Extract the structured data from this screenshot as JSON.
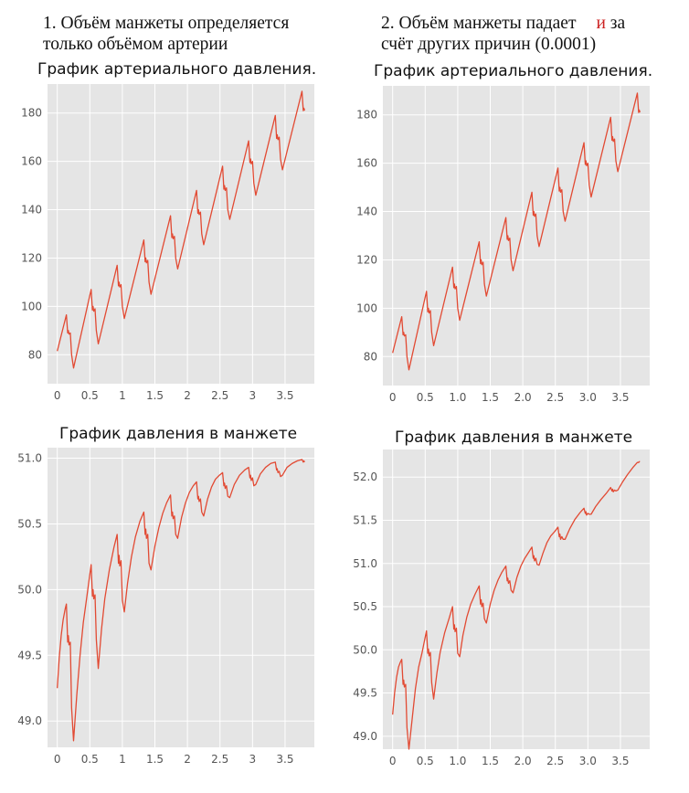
{
  "captions": {
    "left": {
      "line1": "1. Объём манжеты определяется",
      "line2": "только объёмом артерии"
    },
    "right": {
      "line1a": "2. Объём манжеты  падает",
      "line1b": "и",
      "line1c": " за",
      "line2": "счёт других причин (0.0001)"
    }
  },
  "chart_data": [
    {
      "id": "left-arterial",
      "type": "line",
      "title": "График артериального давления.",
      "xlim": [
        -0.15,
        3.95
      ],
      "ylim": [
        68,
        192
      ],
      "xticks": [
        0,
        0.5,
        1,
        1.5,
        2,
        2.5,
        3,
        3.5
      ],
      "xtick_labels": [
        "0",
        "0.5",
        "1",
        "1.5",
        "2",
        "2.5",
        "3",
        "3.5"
      ],
      "yticks": [
        80,
        100,
        120,
        140,
        160,
        180
      ],
      "ytick_labels": [
        "80",
        "100",
        "120",
        "140",
        "160",
        "180"
      ],
      "grid": true,
      "series": [
        {
          "color": "#e24a33",
          "x": [
            0,
            0.14,
            0.16,
            0.17,
            0.18,
            0.2,
            0.22,
            0.25,
            0.52,
            0.54,
            0.55,
            0.56,
            0.58,
            0.6,
            0.63,
            0.92,
            0.94,
            0.95,
            0.96,
            0.98,
            1.0,
            1.03,
            1.33,
            1.35,
            1.36,
            1.37,
            1.39,
            1.41,
            1.44,
            1.74,
            1.76,
            1.77,
            1.78,
            1.8,
            1.82,
            1.85,
            2.14,
            2.16,
            2.17,
            2.18,
            2.2,
            2.22,
            2.25,
            2.54,
            2.56,
            2.57,
            2.58,
            2.6,
            2.62,
            2.65,
            2.94,
            2.96,
            2.97,
            2.98,
            3.0,
            3.02,
            3.05,
            3.35,
            3.37,
            3.38,
            3.39,
            3.41,
            3.43,
            3.46,
            3.76,
            3.78,
            3.79,
            3.8
          ],
          "y": [
            81.5,
            96.5,
            89,
            90,
            88.5,
            89,
            80,
            74.5,
            107,
            98.5,
            100,
            98,
            99,
            90,
            84.5,
            117,
            108.5,
            110,
            108,
            109,
            100,
            95,
            127.5,
            118.5,
            120,
            118,
            119,
            110,
            105,
            137.5,
            128.5,
            130,
            128,
            129,
            120,
            115.5,
            148,
            138.5,
            140,
            138,
            139,
            130,
            125.5,
            158,
            148.5,
            150,
            148,
            149,
            140,
            136,
            168.5,
            159.5,
            161,
            159,
            160,
            151,
            146,
            179,
            169.5,
            171,
            169,
            170,
            161,
            156.5,
            189,
            181,
            182,
            181
          ]
        }
      ]
    },
    {
      "id": "right-arterial",
      "type": "line",
      "title": "График артериального давления.",
      "xlim": [
        -0.15,
        3.95
      ],
      "ylim": [
        68,
        192
      ],
      "xticks": [
        0,
        0.5,
        1,
        1.5,
        2,
        2.5,
        3,
        3.5
      ],
      "xtick_labels": [
        "0",
        "0.5",
        "1.0",
        "1.5",
        "2.0",
        "2.5",
        "3.0",
        "3.5"
      ],
      "yticks": [
        80,
        100,
        120,
        140,
        160,
        180
      ],
      "ytick_labels": [
        "80",
        "100",
        "120",
        "140",
        "160",
        "180"
      ],
      "grid": true,
      "series": [
        {
          "color": "#e24a33",
          "x": [
            0,
            0.14,
            0.16,
            0.17,
            0.18,
            0.2,
            0.22,
            0.25,
            0.52,
            0.54,
            0.55,
            0.56,
            0.58,
            0.6,
            0.63,
            0.92,
            0.94,
            0.95,
            0.96,
            0.98,
            1.0,
            1.03,
            1.33,
            1.35,
            1.36,
            1.37,
            1.39,
            1.41,
            1.44,
            1.74,
            1.76,
            1.77,
            1.78,
            1.8,
            1.82,
            1.85,
            2.14,
            2.16,
            2.17,
            2.18,
            2.2,
            2.22,
            2.25,
            2.54,
            2.56,
            2.57,
            2.58,
            2.6,
            2.62,
            2.65,
            2.94,
            2.96,
            2.97,
            2.98,
            3.0,
            3.02,
            3.05,
            3.35,
            3.37,
            3.38,
            3.39,
            3.41,
            3.43,
            3.46,
            3.76,
            3.78,
            3.79,
            3.8
          ],
          "y": [
            81.5,
            96.5,
            89,
            90,
            88.5,
            89,
            80,
            74.5,
            107,
            98.5,
            100,
            98,
            99,
            90,
            84.5,
            117,
            108.5,
            110,
            108,
            109,
            100,
            95,
            127.5,
            118.5,
            120,
            118,
            119,
            110,
            105,
            137.5,
            128.5,
            130,
            128,
            129,
            120,
            115.5,
            148,
            138.5,
            140,
            138,
            139,
            130,
            125.5,
            158,
            148.5,
            150,
            148,
            149,
            140,
            136,
            168.5,
            159.5,
            161,
            159,
            160,
            151,
            146,
            179,
            169.5,
            171,
            169,
            170,
            161,
            156.5,
            189,
            181,
            182,
            181
          ]
        }
      ]
    },
    {
      "id": "left-cuff",
      "type": "line",
      "title": "График давления в манжете",
      "xlim": [
        -0.15,
        3.95
      ],
      "ylim": [
        48.8,
        51.08
      ],
      "xticks": [
        0,
        0.5,
        1,
        1.5,
        2,
        2.5,
        3,
        3.5
      ],
      "xtick_labels": [
        "0",
        "0.5",
        "1",
        "1.5",
        "2",
        "2.5",
        "3",
        "3.5"
      ],
      "yticks": [
        49.0,
        49.5,
        50.0,
        50.5,
        51.0
      ],
      "ytick_labels": [
        "49.0",
        "49.5",
        "50.0",
        "50.5",
        "51.0"
      ],
      "grid": true,
      "series": [
        {
          "color": "#e24a33",
          "x": [
            0,
            0.03,
            0.06,
            0.09,
            0.12,
            0.14,
            0.16,
            0.17,
            0.18,
            0.2,
            0.22,
            0.25,
            0.3,
            0.35,
            0.4,
            0.45,
            0.52,
            0.54,
            0.55,
            0.56,
            0.58,
            0.6,
            0.63,
            0.68,
            0.73,
            0.8,
            0.87,
            0.92,
            0.94,
            0.95,
            0.96,
            0.98,
            1.0,
            1.03,
            1.08,
            1.14,
            1.2,
            1.27,
            1.33,
            1.35,
            1.36,
            1.37,
            1.39,
            1.41,
            1.44,
            1.5,
            1.56,
            1.62,
            1.68,
            1.74,
            1.76,
            1.77,
            1.78,
            1.8,
            1.82,
            1.85,
            1.91,
            1.97,
            2.03,
            2.09,
            2.14,
            2.16,
            2.17,
            2.18,
            2.2,
            2.22,
            2.25,
            2.31,
            2.37,
            2.43,
            2.49,
            2.54,
            2.56,
            2.57,
            2.58,
            2.6,
            2.62,
            2.65,
            2.72,
            2.8,
            2.88,
            2.94,
            2.96,
            2.97,
            2.98,
            3.0,
            3.02,
            3.05,
            3.12,
            3.2,
            3.28,
            3.35,
            3.37,
            3.38,
            3.39,
            3.41,
            3.43,
            3.46,
            3.53,
            3.61,
            3.69,
            3.76,
            3.78,
            3.79,
            3.8
          ],
          "y": [
            49.25,
            49.48,
            49.65,
            49.77,
            49.85,
            49.89,
            49.6,
            49.65,
            49.58,
            49.6,
            49.1,
            48.85,
            49.2,
            49.5,
            49.75,
            49.93,
            50.19,
            49.95,
            50.0,
            49.93,
            49.96,
            49.62,
            49.4,
            49.7,
            49.93,
            50.15,
            50.32,
            50.42,
            50.2,
            50.26,
            50.18,
            50.22,
            49.92,
            49.83,
            50.05,
            50.25,
            50.4,
            50.52,
            50.59,
            50.42,
            50.46,
            50.39,
            50.42,
            50.2,
            50.15,
            50.33,
            50.47,
            50.58,
            50.66,
            50.72,
            50.56,
            50.59,
            50.54,
            50.56,
            50.42,
            50.39,
            50.55,
            50.66,
            50.74,
            50.79,
            50.82,
            50.69,
            50.71,
            50.67,
            50.69,
            50.59,
            50.56,
            50.69,
            50.78,
            50.84,
            50.87,
            50.89,
            50.79,
            50.81,
            50.77,
            50.79,
            50.71,
            50.7,
            50.8,
            50.87,
            50.91,
            50.93,
            50.85,
            50.87,
            50.83,
            50.85,
            50.79,
            50.8,
            50.88,
            50.93,
            50.96,
            50.97,
            50.91,
            50.92,
            50.89,
            50.9,
            50.86,
            50.87,
            50.93,
            50.96,
            50.98,
            50.99,
            50.97,
            50.98,
            50.97
          ]
        }
      ]
    },
    {
      "id": "right-cuff",
      "type": "line",
      "title": "График давления в манжете",
      "xlim": [
        -0.15,
        3.95
      ],
      "ylim": [
        48.85,
        52.32
      ],
      "xticks": [
        0,
        0.5,
        1,
        1.5,
        2,
        2.5,
        3,
        3.5
      ],
      "xtick_labels": [
        "0",
        "0.5",
        "1.0",
        "1.5",
        "2.0",
        "2.5",
        "3.0",
        "3.5"
      ],
      "yticks": [
        49.0,
        49.5,
        50.0,
        50.5,
        51.0,
        51.5,
        52.0
      ],
      "ytick_labels": [
        "49.0",
        "49.5",
        "50.0",
        "50.5",
        "51.0",
        "51.5",
        "52.0"
      ],
      "grid": true,
      "series": [
        {
          "color": "#e24a33",
          "x": [
            0,
            0.03,
            0.06,
            0.09,
            0.12,
            0.14,
            0.16,
            0.17,
            0.18,
            0.2,
            0.22,
            0.25,
            0.3,
            0.35,
            0.4,
            0.45,
            0.52,
            0.54,
            0.55,
            0.56,
            0.58,
            0.6,
            0.63,
            0.68,
            0.73,
            0.8,
            0.87,
            0.92,
            0.94,
            0.95,
            0.96,
            0.98,
            1.0,
            1.03,
            1.08,
            1.14,
            1.2,
            1.27,
            1.33,
            1.35,
            1.36,
            1.37,
            1.39,
            1.41,
            1.44,
            1.5,
            1.56,
            1.62,
            1.68,
            1.74,
            1.76,
            1.77,
            1.78,
            1.8,
            1.82,
            1.85,
            1.91,
            1.97,
            2.03,
            2.09,
            2.14,
            2.16,
            2.17,
            2.18,
            2.2,
            2.22,
            2.25,
            2.31,
            2.37,
            2.43,
            2.49,
            2.54,
            2.56,
            2.57,
            2.58,
            2.6,
            2.62,
            2.65,
            2.72,
            2.8,
            2.88,
            2.94,
            2.96,
            2.97,
            2.98,
            3.0,
            3.02,
            3.05,
            3.12,
            3.2,
            3.28,
            3.35,
            3.37,
            3.38,
            3.39,
            3.41,
            3.43,
            3.46,
            3.53,
            3.61,
            3.69,
            3.76,
            3.78,
            3.79,
            3.8
          ],
          "y": [
            49.25,
            49.5,
            49.68,
            49.8,
            49.86,
            49.89,
            49.6,
            49.65,
            49.57,
            49.6,
            49.1,
            48.85,
            49.2,
            49.55,
            49.8,
            49.96,
            50.22,
            49.96,
            50.01,
            49.93,
            49.97,
            49.62,
            49.43,
            49.73,
            49.97,
            50.2,
            50.37,
            50.5,
            50.24,
            50.29,
            50.21,
            50.25,
            49.96,
            49.92,
            50.17,
            50.38,
            50.53,
            50.65,
            50.74,
            50.53,
            50.58,
            50.5,
            50.54,
            50.36,
            50.31,
            50.53,
            50.69,
            50.81,
            50.9,
            50.97,
            50.8,
            50.83,
            50.77,
            50.8,
            50.69,
            50.66,
            50.84,
            50.97,
            51.06,
            51.13,
            51.19,
            51.06,
            51.09,
            51.03,
            51.06,
            50.99,
            50.98,
            51.12,
            51.24,
            51.32,
            51.37,
            51.42,
            51.31,
            51.34,
            51.28,
            51.31,
            51.28,
            51.28,
            51.4,
            51.51,
            51.59,
            51.64,
            51.58,
            51.6,
            51.56,
            51.58,
            51.57,
            51.57,
            51.66,
            51.74,
            51.81,
            51.88,
            51.84,
            51.86,
            51.83,
            51.85,
            51.84,
            51.85,
            51.94,
            52.03,
            52.11,
            52.17,
            52.17,
            52.18,
            52.18
          ]
        }
      ]
    }
  ]
}
